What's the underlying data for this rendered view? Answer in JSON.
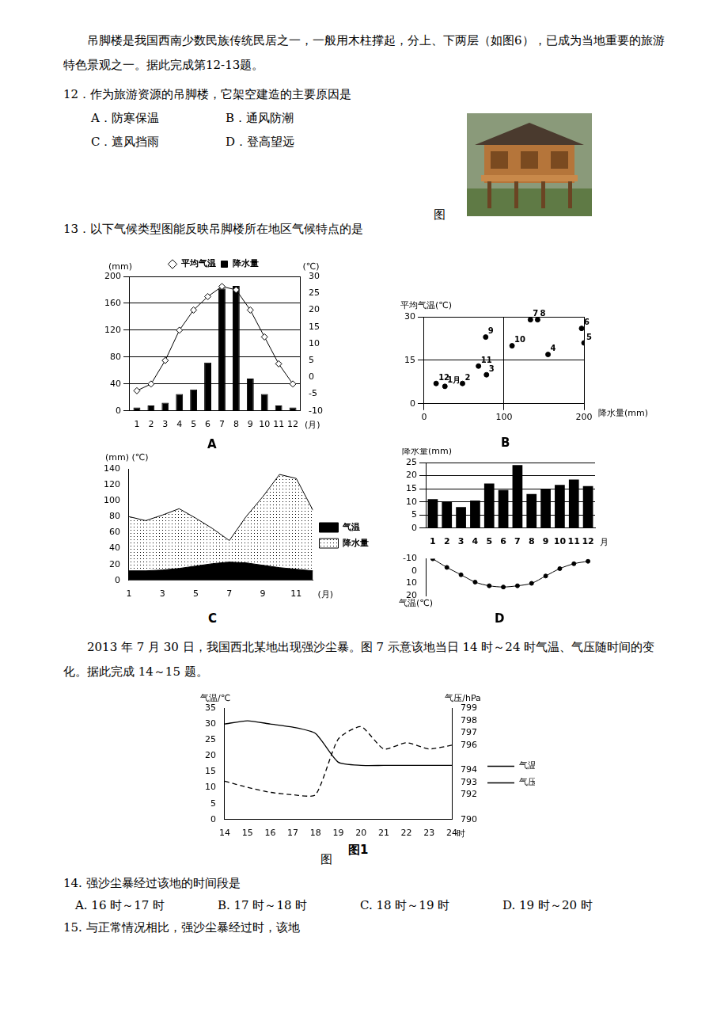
{
  "text": {
    "intro": "吊脚楼是我国西南少数民族传统民居之一，一般用木柱撑起，分上、下两层（如图6），已成为当地重要的旅游特色景观之一。据此完成第12-13题。",
    "q12": "12．作为旅游资源的吊脚楼，它架空建造的主要原因是",
    "q12_options": [
      "A．防寒保温",
      "B．通风防潮",
      "C．遮风挡雨",
      "D．登高望远"
    ],
    "photo_caption": "图",
    "q13": "13．以下气候类型图能反映吊脚楼所在地区气候特点的是",
    "intro2": "2013 年 7 月 30 日，我国西北某地出现强沙尘暴。图 7 示意该地当日 14 时～24 时气温、气压随时间的变化。据此完成 14～15 题。",
    "q14": "14.  强沙尘暴经过该地的时间段是",
    "q14_options": [
      "A.  16 时～17 时",
      "B.  17 时～18 时",
      "C.  18 时～19 时",
      "D.  19 时～20 时"
    ],
    "q15": "15.  与正常情况相比，强沙尘暴经过时，该地"
  },
  "chart_data": [
    {
      "type": "bar",
      "caption": "A",
      "categories": [
        1,
        2,
        3,
        4,
        5,
        6,
        7,
        8,
        9,
        10,
        11,
        12
      ],
      "series": [
        {
          "name": "降水量",
          "type": "bar",
          "color": "#000000",
          "values": [
            5,
            8,
            12,
            25,
            32,
            72,
            182,
            186,
            48,
            25,
            8,
            5
          ]
        },
        {
          "name": "平均气温",
          "type": "line",
          "color": "#000000",
          "marker": "diamond",
          "axis": "y2",
          "values": [
            -4,
            -2,
            5,
            14,
            20,
            24,
            27,
            26,
            20,
            12,
            4,
            -2
          ]
        }
      ],
      "ylim": [
        0,
        200
      ],
      "yticks": [
        0,
        40,
        80,
        120,
        160,
        200
      ],
      "y2lim": [
        -10,
        30
      ],
      "y2ticks": [
        -10,
        -5,
        0,
        5,
        10,
        15,
        20,
        25,
        30
      ],
      "ylabel": "(mm)",
      "y2label": "(℃)",
      "xlabel": "(月)",
      "grid": true,
      "legend": "top"
    },
    {
      "type": "scatter",
      "caption": "B",
      "x": [
        26,
        48,
        78,
        155,
        200,
        197,
        133,
        142,
        77,
        110,
        68,
        15
      ],
      "values": [
        6,
        7,
        10,
        17,
        21,
        26,
        29,
        29,
        23,
        20,
        13,
        7
      ],
      "point_labels": [
        "1月",
        "2",
        "3",
        "4",
        "5",
        "6",
        "7",
        "8",
        "9",
        "10",
        "11",
        "12"
      ],
      "xlim": [
        0,
        200
      ],
      "xticks": [
        0,
        100,
        200
      ],
      "ylim": [
        0,
        30
      ],
      "yticks": [
        0,
        15,
        30
      ],
      "xlabel": "降水量(mm)",
      "ylabel": "平均气温(℃)",
      "grid": true,
      "marker": "circle",
      "color": "#000000"
    },
    {
      "type": "area",
      "caption": "C",
      "x": [
        1,
        2,
        3,
        4,
        5,
        6,
        7,
        8,
        9,
        10,
        11,
        12
      ],
      "series": [
        {
          "name": "降水量",
          "color": "#000000",
          "values": [
            80,
            75,
            82,
            90,
            78,
            65,
            50,
            80,
            105,
            133,
            128,
            88
          ]
        },
        {
          "name": "气温",
          "color": "#000000",
          "values": [
            12,
            12,
            13,
            15,
            18,
            21,
            23,
            22,
            19,
            16,
            14,
            12
          ]
        }
      ],
      "xlim": [
        1,
        12
      ],
      "xticks": [
        1,
        3,
        5,
        7,
        9,
        11
      ],
      "ylim": [
        0,
        140
      ],
      "yticks": [
        0,
        20,
        40,
        60,
        80,
        100,
        120,
        140
      ],
      "ylabel": "(mm) (℃)",
      "xlabel": "(月)",
      "legend": "right"
    },
    {
      "type": "bar",
      "caption": "D",
      "categories": [
        1,
        2,
        3,
        4,
        5,
        6,
        7,
        8,
        9,
        10,
        11,
        12
      ],
      "series": [
        {
          "type": "bar",
          "color": "#000000",
          "values": [
            11,
            10,
            8,
            10.5,
            17,
            14.5,
            24,
            13,
            15,
            16.5,
            18.5,
            16
          ]
        },
        {
          "type": "line",
          "color": "#000000",
          "marker": "circle",
          "axis": "y2",
          "values": [
            -10,
            -3,
            3,
            9,
            12,
            13,
            12,
            10,
            4,
            -2,
            -6,
            -8
          ]
        }
      ],
      "ylim": [
        0,
        25
      ],
      "yticks": [
        0,
        5,
        10,
        15,
        20,
        25
      ],
      "y2lim": [
        -10,
        20
      ],
      "y2ticks": [
        -10,
        0,
        10,
        20
      ],
      "ylabel": "降水量(mm)",
      "y2label": "气温(℃)",
      "xlabel": "月",
      "grid": true
    },
    {
      "type": "line",
      "caption": "图",
      "figure_label": "图1",
      "x": [
        14,
        15,
        16,
        17,
        18,
        19,
        20,
        21,
        22,
        23,
        24
      ],
      "series": [
        {
          "name": "气温",
          "color": "#000000",
          "line_style": "solid",
          "values": [
            30,
            31,
            30,
            29,
            27,
            18,
            17,
            17,
            17,
            17,
            17
          ]
        },
        {
          "name": "气压",
          "color": "#000000",
          "line_style": "dashed",
          "axis": "y2",
          "values": [
            793.1,
            792.6,
            792.2,
            792.0,
            792.0,
            796.5,
            797.5,
            795.7,
            796.2,
            795.7,
            796.0
          ]
        }
      ],
      "xlim": [
        14,
        24
      ],
      "xticks": [
        14,
        15,
        16,
        17,
        18,
        19,
        20,
        21,
        22,
        23,
        24
      ],
      "ylim": [
        0,
        35
      ],
      "yticks": [
        0,
        5,
        10,
        15,
        20,
        25,
        30,
        35
      ],
      "y2lim": [
        790,
        799
      ],
      "y2ticks": [
        799,
        798,
        797,
        796,
        794,
        793,
        792,
        790
      ],
      "ylabel": "气温/℃",
      "y2label": "气压/hPa",
      "xlabel": "时",
      "grid": false,
      "legend": "right"
    }
  ]
}
